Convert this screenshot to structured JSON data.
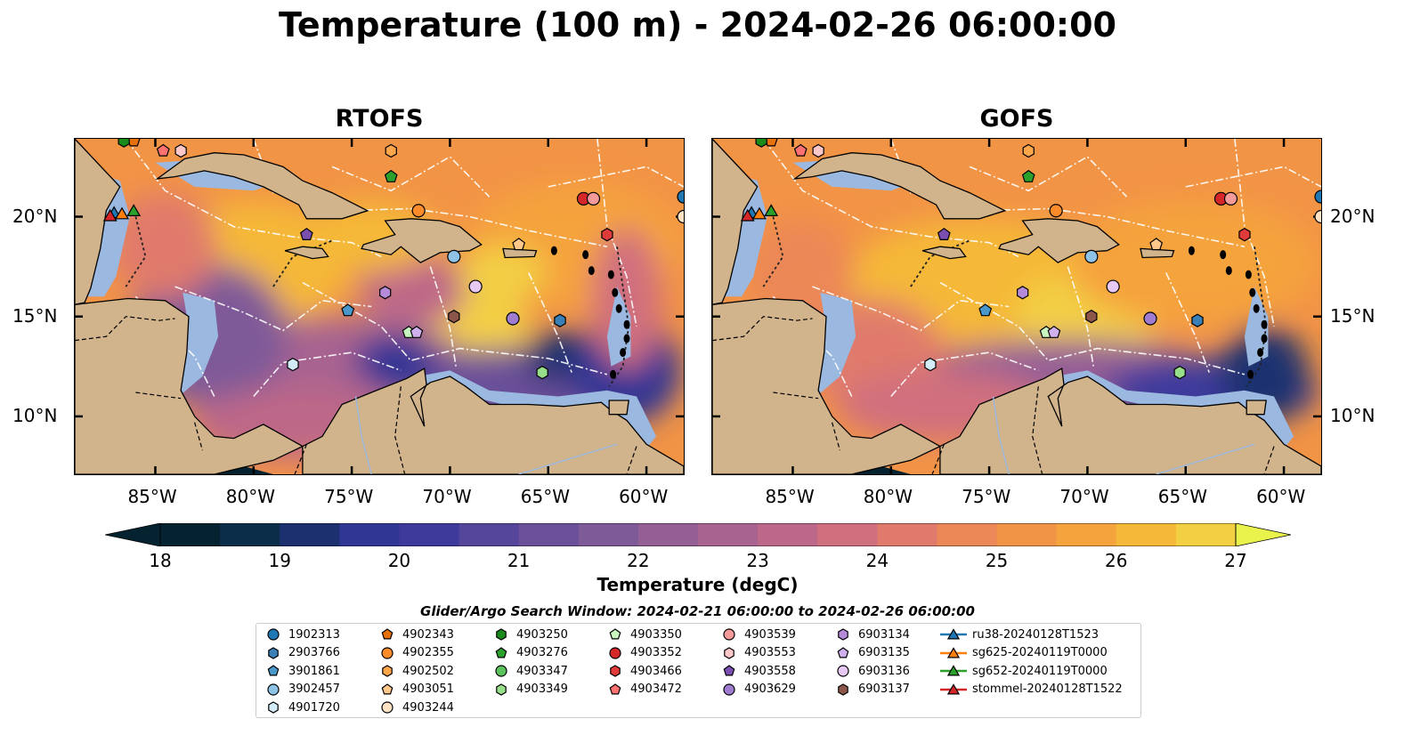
{
  "title": "Temperature (100 m) - 2024-02-26 06:00:00",
  "panels": [
    {
      "title": "RTOFS"
    },
    {
      "title": "GOFS"
    }
  ],
  "axes": {
    "lon_ticks": [
      "85°W",
      "80°W",
      "75°W",
      "70°W",
      "65°W",
      "60°W"
    ],
    "lat_ticks": [
      "20°N",
      "15°N",
      "10°N"
    ]
  },
  "colorbar": {
    "label": "Temperature (degC)",
    "ticks": [
      "18",
      "19",
      "20",
      "21",
      "22",
      "23",
      "24",
      "25",
      "26",
      "27"
    ],
    "range": [
      18,
      27
    ],
    "extend": "both"
  },
  "legend": {
    "title": "Glider/Argo Search Window: 2024-02-21 06:00:00 to 2024-02-26 06:00:00",
    "columns": [
      [
        {
          "label": "1902313",
          "marker": "circle",
          "color": "#1f77b4"
        },
        {
          "label": "2903766",
          "marker": "hexagon",
          "color": "#3a7fb5"
        },
        {
          "label": "3901861",
          "marker": "pentagon",
          "color": "#4a98c9"
        },
        {
          "label": "3902457",
          "marker": "circle",
          "color": "#8ec2e6"
        },
        {
          "label": "4901720",
          "marker": "hexagon",
          "color": "#d2ecf8"
        }
      ],
      [
        {
          "label": "4902343",
          "marker": "pentagon",
          "color": "#e6700a"
        },
        {
          "label": "4902355",
          "marker": "circle",
          "color": "#ff8c2a"
        },
        {
          "label": "4902502",
          "marker": "hexagon",
          "color": "#ffa54a"
        },
        {
          "label": "4903051",
          "marker": "pentagon",
          "color": "#ffc78a"
        },
        {
          "label": "4903244",
          "marker": "circle",
          "color": "#ffe3c4"
        }
      ],
      [
        {
          "label": "4903250",
          "marker": "hexagon",
          "color": "#1a8a1a"
        },
        {
          "label": "4903276",
          "marker": "pentagon",
          "color": "#2ca02c"
        },
        {
          "label": "4903347",
          "marker": "circle",
          "color": "#5cc25c"
        },
        {
          "label": "4903349",
          "marker": "hexagon",
          "color": "#98df8a"
        }
      ],
      [
        {
          "label": "4903350",
          "marker": "pentagon",
          "color": "#c8f5c0"
        },
        {
          "label": "4903352",
          "marker": "circle",
          "color": "#d62728"
        },
        {
          "label": "4903466",
          "marker": "hexagon",
          "color": "#e03a3a"
        },
        {
          "label": "4903472",
          "marker": "pentagon",
          "color": "#ff7070"
        }
      ],
      [
        {
          "label": "4903539",
          "marker": "circle",
          "color": "#f59a9a"
        },
        {
          "label": "4903553",
          "marker": "hexagon",
          "color": "#ffc7c7"
        },
        {
          "label": "4903558",
          "marker": "pentagon",
          "color": "#7a4fb0"
        },
        {
          "label": "4903629",
          "marker": "circle",
          "color": "#a07cd0"
        }
      ],
      [
        {
          "label": "6903134",
          "marker": "hexagon",
          "color": "#b58ad8"
        },
        {
          "label": "6903135",
          "marker": "pentagon",
          "color": "#d0b0ec"
        },
        {
          "label": "6903136",
          "marker": "circle",
          "color": "#e8c8f4"
        },
        {
          "label": "6903137",
          "marker": "hexagon",
          "color": "#8c564b"
        }
      ],
      [
        {
          "label": "ru38-20240128T1523",
          "marker": "triangle-line",
          "color": "#1f77b4"
        },
        {
          "label": "sg625-20240119T0000",
          "marker": "triangle-line",
          "color": "#ff7f0e"
        },
        {
          "label": "sg652-20240119T0000",
          "marker": "triangle-line",
          "color": "#2ca02c"
        },
        {
          "label": "stommel-20240128T1522",
          "marker": "triangle-line",
          "color": "#d62728"
        }
      ]
    ]
  }
}
